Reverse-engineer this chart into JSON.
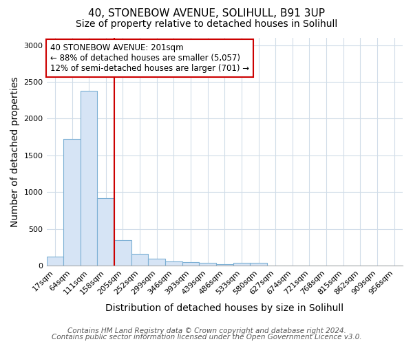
{
  "title_line1": "40, STONEBOW AVENUE, SOLIHULL, B91 3UP",
  "title_line2": "Size of property relative to detached houses in Solihull",
  "xlabel": "Distribution of detached houses by size in Solihull",
  "ylabel": "Number of detached properties",
  "categories": [
    "17sqm",
    "64sqm",
    "111sqm",
    "158sqm",
    "205sqm",
    "252sqm",
    "299sqm",
    "346sqm",
    "393sqm",
    "439sqm",
    "486sqm",
    "533sqm",
    "580sqm",
    "627sqm",
    "674sqm",
    "721sqm",
    "768sqm",
    "815sqm",
    "862sqm",
    "909sqm",
    "956sqm"
  ],
  "values": [
    120,
    1720,
    2380,
    920,
    350,
    155,
    90,
    55,
    45,
    35,
    20,
    35,
    35,
    0,
    0,
    0,
    0,
    0,
    0,
    0,
    0
  ],
  "bar_color": "#d6e4f5",
  "bar_edge_color": "#7bafd4",
  "red_line_x": 3.5,
  "annotation_line1": "40 STONEBOW AVENUE: 201sqm",
  "annotation_line2": "← 88% of detached houses are smaller (5,057)",
  "annotation_line3": "12% of semi-detached houses are larger (701) →",
  "annotation_box_color": "#ffffff",
  "annotation_box_edge_color": "#cc0000",
  "ylim": [
    0,
    3100
  ],
  "yticks": [
    0,
    500,
    1000,
    1500,
    2000,
    2500,
    3000
  ],
  "footer_line1": "Contains HM Land Registry data © Crown copyright and database right 2024.",
  "footer_line2": "Contains public sector information licensed under the Open Government Licence v3.0.",
  "bg_color": "#ffffff",
  "plot_bg_color": "#ffffff",
  "grid_color": "#d0dce8",
  "title_fontsize": 11,
  "subtitle_fontsize": 10,
  "axis_label_fontsize": 10,
  "tick_fontsize": 8,
  "annotation_fontsize": 8.5,
  "footer_fontsize": 7.5
}
